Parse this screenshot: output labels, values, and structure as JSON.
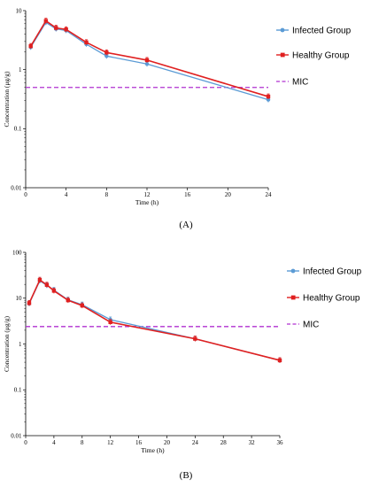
{
  "chart_data": [
    {
      "type": "line",
      "panel_label": "(A)",
      "title": "",
      "xlabel": "Time (h)",
      "ylabel": "Concentration (μg/g)",
      "yscale": "log",
      "xlim": [
        0,
        24
      ],
      "ylim": [
        0.01,
        10
      ],
      "x_ticks": [
        "0",
        "4",
        "8",
        "12",
        "16",
        "20",
        "24"
      ],
      "y_ticks": [
        "0.01",
        "0.1",
        "1",
        "10"
      ],
      "legend_position": "right",
      "series": [
        {
          "name": "Infected Group",
          "color": "#5b9bd5",
          "marker": "circle",
          "x": [
            0.5,
            2,
            3,
            4,
            6,
            8,
            12,
            24
          ],
          "y": [
            2.4,
            6.3,
            4.9,
            4.6,
            2.7,
            1.7,
            1.25,
            0.31
          ]
        },
        {
          "name": "Healthy Group",
          "color": "#e02020",
          "marker": "square",
          "x": [
            0.5,
            2,
            3,
            4,
            6,
            8,
            12,
            24
          ],
          "y": [
            2.5,
            6.7,
            5.1,
            4.8,
            2.9,
            1.95,
            1.45,
            0.35
          ]
        }
      ],
      "reference_line": {
        "name": "MIC",
        "y": 0.5,
        "color": "#b030d0"
      }
    },
    {
      "type": "line",
      "panel_label": "(B)",
      "title": "",
      "xlabel": "Time (h)",
      "ylabel": "Concentration (μg/g)",
      "yscale": "log",
      "xlim": [
        0,
        36
      ],
      "ylim": [
        0.01,
        100
      ],
      "x_ticks": [
        "0",
        "4",
        "8",
        "12",
        "16",
        "20",
        "24",
        "28",
        "32",
        "36"
      ],
      "y_ticks": [
        "0.01",
        "0.1",
        "1",
        "10",
        "100"
      ],
      "legend_position": "right",
      "series": [
        {
          "name": "Infected Group",
          "color": "#5b9bd5",
          "marker": "circle",
          "x": [
            0.5,
            2,
            3,
            4,
            6,
            8,
            12,
            24,
            36
          ],
          "y": [
            7.6,
            24,
            19,
            15,
            9.2,
            7.2,
            3.4,
            1.3,
            0.44
          ]
        },
        {
          "name": "Healthy Group",
          "color": "#e02020",
          "marker": "square",
          "x": [
            0.5,
            2,
            3,
            4,
            6,
            8,
            12,
            24,
            36
          ],
          "y": [
            7.8,
            25,
            19.5,
            14.5,
            9.0,
            6.9,
            3.0,
            1.3,
            0.44
          ]
        }
      ],
      "reference_line": {
        "name": "MIC",
        "y": 2.4,
        "color": "#b030d0"
      }
    }
  ]
}
